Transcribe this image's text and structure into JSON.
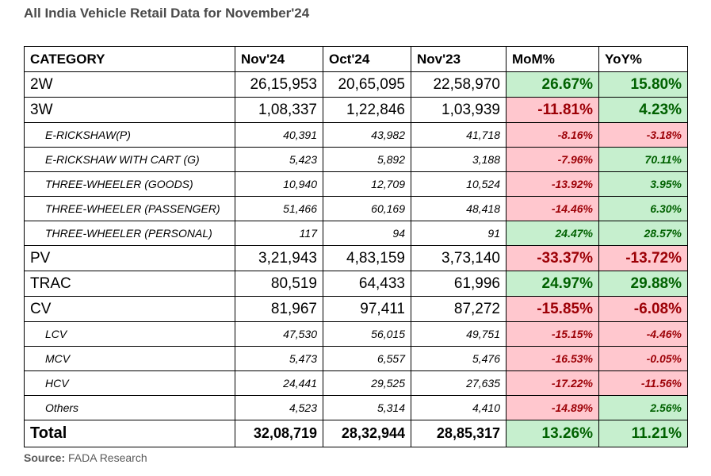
{
  "title": "All India Vehicle Retail Data for November'24",
  "headers": [
    "CATEGORY",
    "Nov'24",
    "Oct'24",
    "Nov'23",
    "MoM%",
    "YoY%"
  ],
  "rows": [
    {
      "category": "2W",
      "nov24": "26,15,953",
      "oct24": "20,65,095",
      "nov23": "22,58,970",
      "mom": "26.67%",
      "yoy": "15.80%"
    },
    {
      "category": "3W",
      "nov24": "1,08,337",
      "oct24": "1,22,846",
      "nov23": "1,03,939",
      "mom": "-11.81%",
      "yoy": "4.23%"
    },
    {
      "category": "E-RICKSHAW(P)",
      "nov24": "40,391",
      "oct24": "43,982",
      "nov23": "41,718",
      "mom": "-8.16%",
      "yoy": "-3.18%"
    },
    {
      "category": "E-RICKSHAW WITH CART (G)",
      "nov24": "5,423",
      "oct24": "5,892",
      "nov23": "3,188",
      "mom": "-7.96%",
      "yoy": "70.11%"
    },
    {
      "category": "THREE-WHEELER (GOODS)",
      "nov24": "10,940",
      "oct24": "12,709",
      "nov23": "10,524",
      "mom": "-13.92%",
      "yoy": "3.95%"
    },
    {
      "category": "THREE-WHEELER (PASSENGER)",
      "nov24": "51,466",
      "oct24": "60,169",
      "nov23": "48,418",
      "mom": "-14.46%",
      "yoy": "6.30%"
    },
    {
      "category": "THREE-WHEELER (PERSONAL)",
      "nov24": "117",
      "oct24": "94",
      "nov23": "91",
      "mom": "24.47%",
      "yoy": "28.57%"
    },
    {
      "category": "PV",
      "nov24": "3,21,943",
      "oct24": "4,83,159",
      "nov23": "3,73,140",
      "mom": "-33.37%",
      "yoy": "-13.72%"
    },
    {
      "category": "TRAC",
      "nov24": "80,519",
      "oct24": "64,433",
      "nov23": "61,996",
      "mom": "24.97%",
      "yoy": "29.88%"
    },
    {
      "category": "CV",
      "nov24": "81,967",
      "oct24": "97,411",
      "nov23": "87,272",
      "mom": "-15.85%",
      "yoy": "-6.08%"
    },
    {
      "category": "LCV",
      "nov24": "47,530",
      "oct24": "56,015",
      "nov23": "49,751",
      "mom": "-15.15%",
      "yoy": "-4.46%"
    },
    {
      "category": "MCV",
      "nov24": "5,473",
      "oct24": "6,557",
      "nov23": "5,476",
      "mom": "-16.53%",
      "yoy": "-0.05%"
    },
    {
      "category": "HCV",
      "nov24": "24,441",
      "oct24": "29,525",
      "nov23": "27,635",
      "mom": "-17.22%",
      "yoy": "-11.56%"
    },
    {
      "category": "Others",
      "nov24": "4,523",
      "oct24": "5,314",
      "nov23": "4,410",
      "mom": "-14.89%",
      "yoy": "2.56%"
    }
  ],
  "total": {
    "category": "Total",
    "nov24": "32,08,719",
    "oct24": "28,32,944",
    "nov23": "28,85,317",
    "mom": "13.26%",
    "yoy": "11.21%"
  },
  "source": {
    "label": "Source:",
    "text": "FADA Research"
  },
  "colors": {
    "positive_bg": "#c6efce",
    "positive_text": "#006100",
    "negative_bg": "#ffc7ce",
    "negative_text": "#9c0006"
  }
}
